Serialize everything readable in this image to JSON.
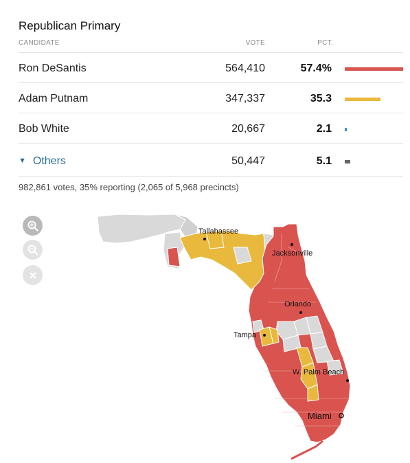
{
  "title": "Republican Primary",
  "headers": {
    "candidate": "CANDIDATE",
    "vote": "VOTE",
    "pct": "PCT."
  },
  "candidates": [
    {
      "name": "Ron DeSantis",
      "vote": "564,410",
      "pct": "57.4%",
      "pct_value": 57.4,
      "color": "#d9534f"
    },
    {
      "name": "Adam Putnam",
      "vote": "347,337",
      "pct": "35.3",
      "pct_value": 35.3,
      "color": "#e8b93c"
    },
    {
      "name": "Bob White",
      "vote": "20,667",
      "pct": "2.1",
      "pct_value": 2.1,
      "color": "#4a8fc0"
    },
    {
      "name": "Others",
      "vote": "50,447",
      "pct": "5.1",
      "pct_value": 5.1,
      "color": "#666666"
    }
  ],
  "reporting": "982,861 votes, 35% reporting (2,065 of 5,968 precincts)",
  "map": {
    "cities": [
      "Tallahassee",
      "Jacksonville",
      "Orlando",
      "Tampa",
      "W. Palm Beach",
      "Miami"
    ],
    "colors": {
      "desantis": "#d9534f",
      "putnam": "#e8b93c",
      "no_results": "#d9d9d9",
      "border": "#ffffff"
    }
  },
  "controls": {
    "zoom_in_icon": "zoom-in-icon",
    "zoom_out_icon": "zoom-out-icon",
    "reset_icon": "close-icon"
  }
}
